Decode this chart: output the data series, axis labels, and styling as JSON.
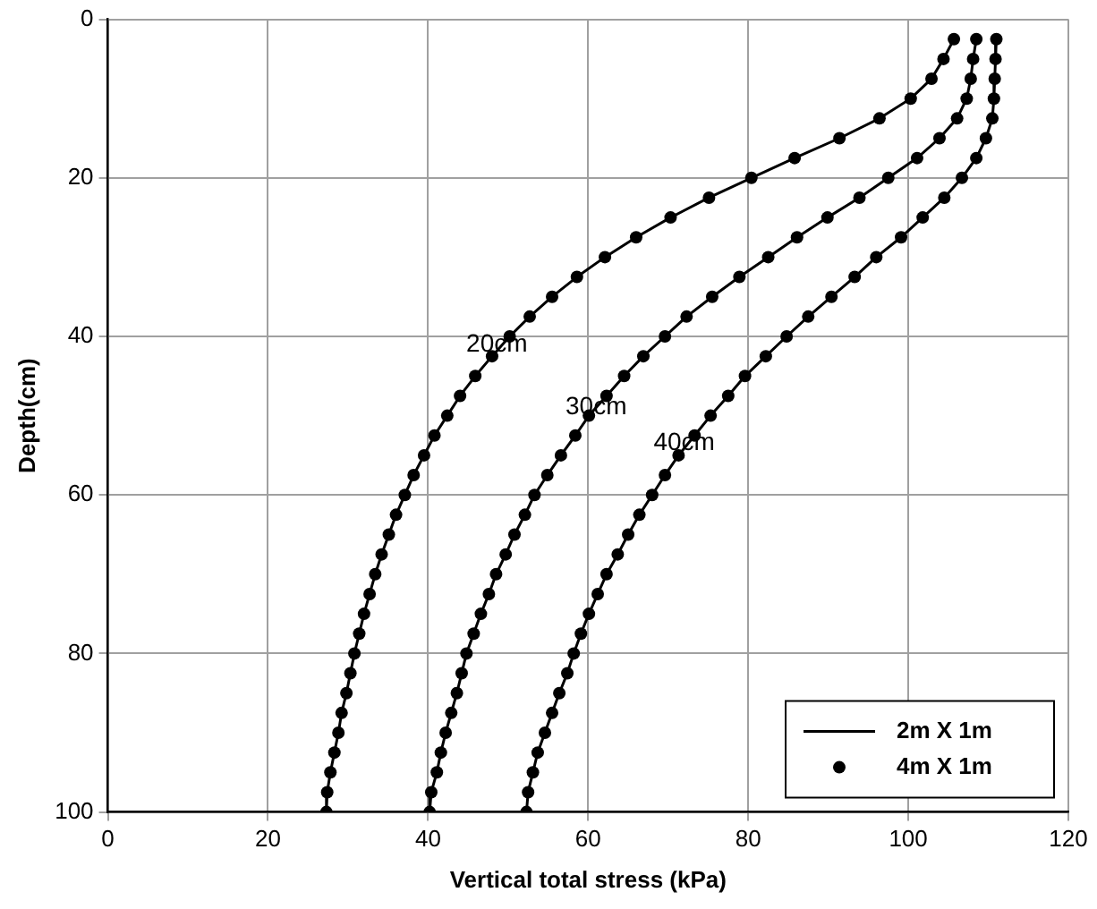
{
  "chart_data": {
    "type": "line",
    "xlabel": "Vertical total stress (kPa)",
    "ylabel": "Depth(cm)",
    "xlim": [
      0,
      120
    ],
    "xticks": [
      0,
      20,
      40,
      60,
      80,
      100,
      120
    ],
    "ylim": [
      100,
      0
    ],
    "yticks": [
      0,
      20,
      40,
      60,
      80,
      100
    ],
    "grid": true,
    "legend": "bottom right",
    "annotations": [
      {
        "text": "20cm",
        "x": 48.6,
        "y": 41
      },
      {
        "text": "30cm",
        "x": 61,
        "y": 49
      },
      {
        "text": "40cm",
        "x": 72,
        "y": 53.5
      }
    ],
    "series": [
      {
        "name": "2m X 1m",
        "type": "line",
        "marker": "none",
        "line_style": "solid",
        "color": "#000000",
        "x": [
          105.7,
          104.4,
          102.9,
          100.3,
          96.4,
          91.4,
          85.8,
          80.4,
          75.1,
          70.3,
          66.0,
          62.1,
          58.6,
          55.5,
          52.7,
          50.2,
          48.0,
          45.9,
          44.0,
          42.4,
          40.8,
          39.5,
          38.2,
          37.1,
          36.0,
          35.1,
          34.2,
          33.4,
          32.7,
          32.0,
          31.4,
          30.8,
          30.3,
          29.8,
          29.2,
          28.8,
          28.3,
          27.8,
          27.4,
          27.3
        ],
        "values": [
          2.5,
          5,
          7.5,
          10,
          12.5,
          15,
          17.5,
          20,
          22.5,
          25,
          27.5,
          30,
          32.5,
          35,
          37.5,
          40,
          42.5,
          45,
          47.5,
          50,
          52.5,
          55,
          57.5,
          60,
          62.5,
          65,
          67.5,
          70,
          72.5,
          75,
          77.5,
          80,
          82.5,
          85,
          87.5,
          90,
          92.5,
          95,
          97.5,
          100
        ]
      },
      {
        "name": "4m X 1m",
        "type": "scatter",
        "marker": "circle",
        "color": "#000000",
        "x": [
          105.7,
          104.4,
          102.9,
          100.3,
          96.4,
          91.4,
          85.8,
          80.4,
          75.1,
          70.3,
          66.0,
          62.1,
          58.6,
          55.5,
          52.7,
          50.2,
          48.0,
          45.9,
          44.0,
          42.4,
          40.8,
          39.5,
          38.2,
          37.1,
          36.0,
          35.1,
          34.2,
          33.4,
          32.7,
          32.0,
          31.4,
          30.8,
          30.3,
          29.8,
          29.2,
          28.8,
          28.3,
          27.8,
          27.4,
          27.3
        ],
        "values": [
          2.5,
          5,
          7.5,
          10,
          12.5,
          15,
          17.5,
          20,
          22.5,
          25,
          27.5,
          30,
          32.5,
          35,
          37.5,
          40,
          42.5,
          45,
          47.5,
          50,
          52.5,
          55,
          57.5,
          60,
          62.5,
          65,
          67.5,
          70,
          72.5,
          75,
          77.5,
          80,
          82.5,
          85,
          87.5,
          90,
          92.5,
          95,
          97.5,
          100
        ]
      },
      {
        "type": "line",
        "marker": "none",
        "line_style": "solid",
        "color": "#000000",
        "x": [
          108.5,
          108.1,
          107.8,
          107.3,
          106.1,
          103.9,
          101.1,
          97.5,
          93.9,
          89.9,
          86.1,
          82.5,
          78.9,
          75.5,
          72.3,
          69.6,
          66.9,
          64.5,
          62.3,
          60.1,
          58.4,
          56.6,
          54.9,
          53.3,
          52.1,
          50.8,
          49.7,
          48.5,
          47.6,
          46.6,
          45.7,
          44.8,
          44.2,
          43.6,
          42.9,
          42.2,
          41.6,
          41.1,
          40.4,
          40.2
        ],
        "values": [
          2.5,
          5,
          7.5,
          10,
          12.5,
          15,
          17.5,
          20,
          22.5,
          25,
          27.5,
          30,
          32.5,
          35,
          37.5,
          40,
          42.5,
          45,
          47.5,
          50,
          52.5,
          55,
          57.5,
          60,
          62.5,
          65,
          67.5,
          70,
          72.5,
          75,
          77.5,
          80,
          82.5,
          85,
          87.5,
          90,
          92.5,
          95,
          97.5,
          100
        ]
      },
      {
        "type": "scatter",
        "marker": "circle",
        "color": "#000000",
        "x": [
          108.5,
          108.1,
          107.8,
          107.3,
          106.1,
          103.9,
          101.1,
          97.5,
          93.9,
          89.9,
          86.1,
          82.5,
          78.9,
          75.5,
          72.3,
          69.6,
          66.9,
          64.5,
          62.3,
          60.1,
          58.4,
          56.6,
          54.9,
          53.3,
          52.1,
          50.8,
          49.7,
          48.5,
          47.6,
          46.6,
          45.7,
          44.8,
          44.2,
          43.6,
          42.9,
          42.2,
          41.6,
          41.1,
          40.4,
          40.2
        ],
        "values": [
          2.5,
          5,
          7.5,
          10,
          12.5,
          15,
          17.5,
          20,
          22.5,
          25,
          27.5,
          30,
          32.5,
          35,
          37.5,
          40,
          42.5,
          45,
          47.5,
          50,
          52.5,
          55,
          57.5,
          60,
          62.5,
          65,
          67.5,
          70,
          72.5,
          75,
          77.5,
          80,
          82.5,
          85,
          87.5,
          90,
          92.5,
          95,
          97.5,
          100
        ]
      },
      {
        "type": "line",
        "marker": "none",
        "line_style": "solid",
        "color": "#000000",
        "x": [
          111.0,
          110.9,
          110.8,
          110.7,
          110.5,
          109.7,
          108.5,
          106.7,
          104.5,
          101.8,
          99.1,
          96.0,
          93.3,
          90.4,
          87.5,
          84.8,
          82.2,
          79.6,
          77.5,
          75.3,
          73.3,
          71.3,
          69.6,
          68.0,
          66.4,
          65.0,
          63.7,
          62.3,
          61.2,
          60.1,
          59.1,
          58.2,
          57.4,
          56.4,
          55.5,
          54.6,
          53.7,
          53.1,
          52.5,
          52.3
        ],
        "values": [
          2.5,
          5,
          7.5,
          10,
          12.5,
          15,
          17.5,
          20,
          22.5,
          25,
          27.5,
          30,
          32.5,
          35,
          37.5,
          40,
          42.5,
          45,
          47.5,
          50,
          52.5,
          55,
          57.5,
          60,
          62.5,
          65,
          67.5,
          70,
          72.5,
          75,
          77.5,
          80,
          82.5,
          85,
          87.5,
          90,
          92.5,
          95,
          97.5,
          100
        ]
      },
      {
        "type": "scatter",
        "marker": "circle",
        "color": "#000000",
        "x": [
          111.0,
          110.9,
          110.8,
          110.7,
          110.5,
          109.7,
          108.5,
          106.7,
          104.5,
          101.8,
          99.1,
          96.0,
          93.3,
          90.4,
          87.5,
          84.8,
          82.2,
          79.6,
          77.5,
          75.3,
          73.3,
          71.3,
          69.6,
          68.0,
          66.4,
          65.0,
          63.7,
          62.3,
          61.2,
          60.1,
          59.1,
          58.2,
          57.4,
          56.4,
          55.5,
          54.6,
          53.7,
          53.1,
          52.5,
          52.3
        ],
        "values": [
          2.5,
          5,
          7.5,
          10,
          12.5,
          15,
          17.5,
          20,
          22.5,
          25,
          27.5,
          30,
          32.5,
          35,
          37.5,
          40,
          42.5,
          45,
          47.5,
          50,
          52.5,
          55,
          57.5,
          60,
          62.5,
          65,
          67.5,
          70,
          72.5,
          75,
          77.5,
          80,
          82.5,
          85,
          87.5,
          90,
          92.5,
          95,
          97.5,
          100
        ]
      }
    ]
  }
}
